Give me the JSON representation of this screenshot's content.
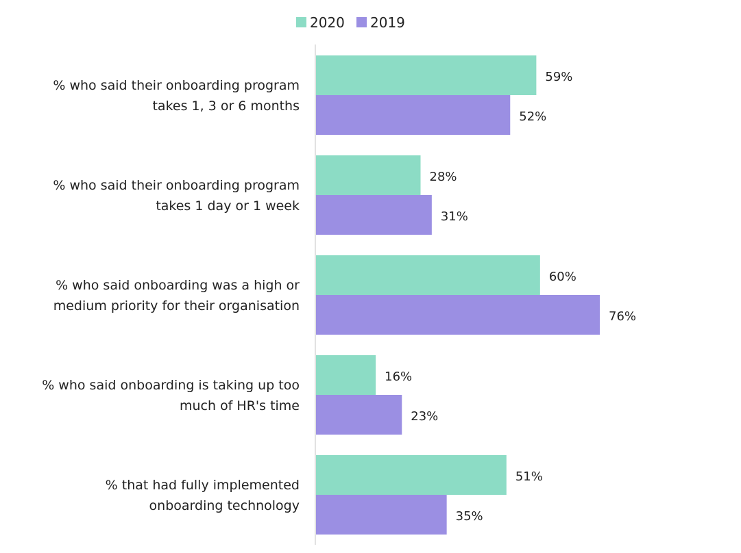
{
  "chart_data": {
    "type": "bar",
    "orientation": "horizontal",
    "categories": [
      [
        "% who said their onboarding program",
        "takes 1, 3 or 6 months"
      ],
      [
        "% who said their onboarding program",
        "takes 1 day or 1 week"
      ],
      [
        "% who said onboarding was a high or",
        "medium priority for their organisation"
      ],
      [
        "% who said onboarding is taking up too",
        "much of HR's time"
      ],
      [
        "% that had fully implemented",
        "onboarding technology"
      ]
    ],
    "series": [
      {
        "name": "2020",
        "color": "#8cdcc5",
        "values": [
          59,
          28,
          60,
          16,
          51
        ]
      },
      {
        "name": "2019",
        "color": "#9b8fe3",
        "values": [
          52,
          31,
          76,
          23,
          35
        ]
      }
    ],
    "value_suffix": "%",
    "xlim": [
      0,
      100
    ],
    "grid": false,
    "legend": "top",
    "axis_color": "#d9d9d9"
  }
}
